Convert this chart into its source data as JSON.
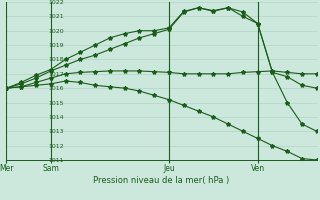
{
  "title": "Pression niveau de la mer( hPa )",
  "background_color": "#cce8dc",
  "grid_color": "#aacfbf",
  "line_color": "#1a5c1a",
  "ylim": [
    1011,
    1022
  ],
  "yticks": [
    1011,
    1012,
    1013,
    1014,
    1015,
    1016,
    1017,
    1018,
    1019,
    1020,
    1021,
    1022
  ],
  "day_labels": [
    "Mer",
    "Sam",
    "Jeu",
    "Ven"
  ],
  "day_positions": [
    0,
    3,
    11,
    17
  ],
  "xlim": [
    0,
    21
  ],
  "series1_y": [
    1016.0,
    1016.1,
    1016.4,
    1016.7,
    1017.0,
    1017.1,
    1017.15,
    1017.2,
    1017.2,
    1017.2,
    1017.15,
    1017.1,
    1017.0,
    1017.0,
    1017.0,
    1017.0,
    1017.1,
    1017.15,
    1017.2,
    1017.1,
    1017.0,
    1017.0
  ],
  "series2_y": [
    1016.0,
    1016.4,
    1016.9,
    1017.3,
    1018.0,
    1018.5,
    1019.0,
    1019.5,
    1019.8,
    1020.0,
    1020.0,
    1020.2,
    1021.35,
    1021.6,
    1021.4,
    1021.6,
    1021.3,
    1020.5,
    1017.1,
    1016.8,
    1016.2,
    1016.0
  ],
  "series3_y": [
    1016.0,
    1016.3,
    1016.7,
    1017.2,
    1017.6,
    1018.0,
    1018.3,
    1018.7,
    1019.1,
    1019.5,
    1019.8,
    1020.1,
    1021.3,
    1021.6,
    1021.35,
    1021.6,
    1021.0,
    1020.5,
    1017.1,
    1015.0,
    1013.5,
    1013.0
  ],
  "series4_y": [
    1016.0,
    1016.1,
    1016.2,
    1016.3,
    1016.5,
    1016.4,
    1016.2,
    1016.1,
    1016.0,
    1015.8,
    1015.5,
    1015.2,
    1014.8,
    1014.4,
    1014.0,
    1013.5,
    1013.0,
    1012.5,
    1012.0,
    1011.6,
    1011.1,
    1011.0
  ]
}
